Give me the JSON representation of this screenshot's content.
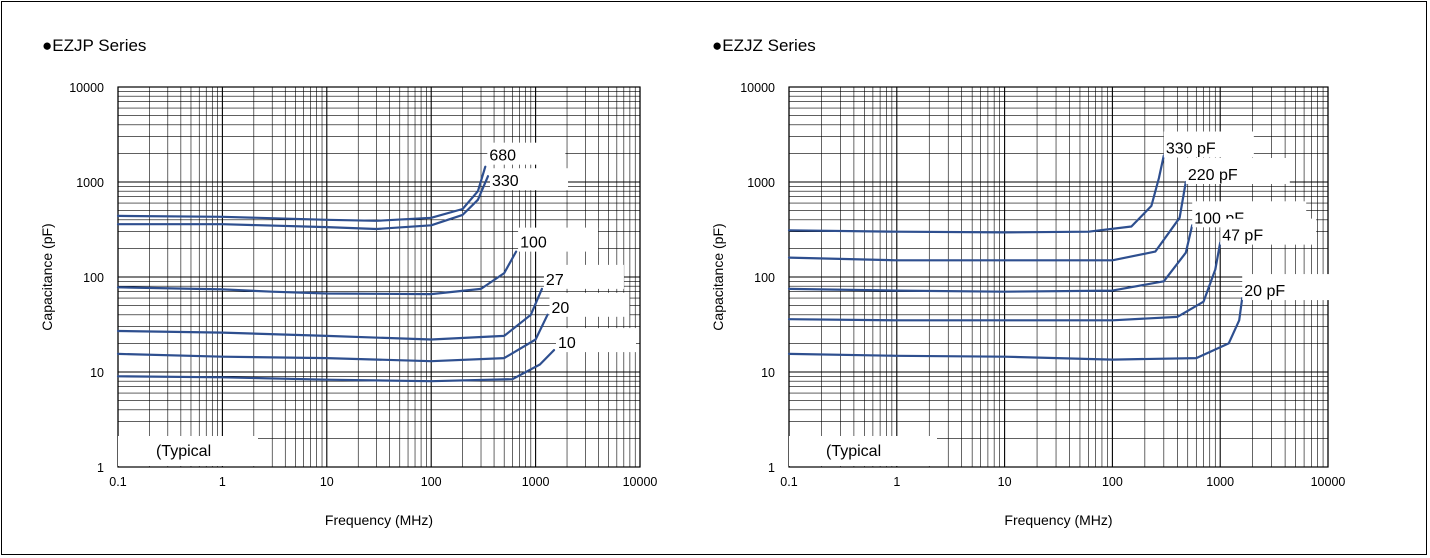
{
  "chart_data": [
    {
      "type": "line",
      "title": "●EZJP Series",
      "xlabel": "Frequency (MHz)",
      "ylabel": "Capacitance (pF)",
      "x_scale": "log",
      "y_scale": "log",
      "xlim": [
        0.1,
        10000
      ],
      "ylim": [
        1,
        10000
      ],
      "x_ticks": [
        "0.1",
        "1",
        "10",
        "100",
        "1000",
        "10000"
      ],
      "y_ticks": [
        "1",
        "10",
        "100",
        "1000",
        "10000"
      ],
      "grid": true,
      "note": "(Typical",
      "line_color": "#2e4f8f",
      "series": [
        {
          "name": "680",
          "label": "680",
          "x": [
            0.1,
            1,
            10,
            30,
            100,
            200,
            280,
            330
          ],
          "y": [
            440,
            430,
            400,
            390,
            420,
            520,
            800,
            1450
          ]
        },
        {
          "name": "330",
          "label": "330",
          "x": [
            0.1,
            1,
            10,
            30,
            100,
            200,
            280,
            350
          ],
          "y": [
            360,
            360,
            335,
            320,
            350,
            450,
            650,
            1150
          ]
        },
        {
          "name": "100",
          "label": "100",
          "x": [
            0.1,
            1,
            3,
            10,
            100,
            300,
            500,
            650
          ],
          "y": [
            78,
            74,
            70,
            67,
            66,
            75,
            110,
            185
          ]
        },
        {
          "name": "27",
          "label": "27",
          "x": [
            0.1,
            1,
            10,
            100,
            500,
            900,
            1150
          ],
          "y": [
            27,
            26,
            24,
            22,
            24,
            40,
            75
          ]
        },
        {
          "name": "20",
          "label": "20",
          "x": [
            0.1,
            1,
            10,
            100,
            500,
            1000,
            1300
          ],
          "y": [
            15.5,
            14.5,
            14,
            13,
            14,
            22,
            40
          ]
        },
        {
          "name": "10",
          "label": "10",
          "x": [
            0.1,
            1,
            10,
            100,
            600,
            1100,
            1500
          ],
          "y": [
            9,
            8.8,
            8.3,
            8,
            8.4,
            12,
            17
          ]
        }
      ]
    },
    {
      "type": "line",
      "title": "●EZJZ Series",
      "xlabel": "Frequency (MHz)",
      "ylabel": "Capacitance (pF)",
      "x_scale": "log",
      "y_scale": "log",
      "xlim": [
        0.1,
        10000
      ],
      "ylim": [
        1,
        10000
      ],
      "x_ticks": [
        "0.1",
        "1",
        "10",
        "100",
        "1000",
        "10000"
      ],
      "y_ticks": [
        "1",
        "10",
        "100",
        "1000",
        "10000"
      ],
      "grid": true,
      "note": "(Typical",
      "line_color": "#2e4f8f",
      "series": [
        {
          "name": "330 pF",
          "label": "330 pF",
          "x": [
            0.1,
            1,
            10,
            60,
            150,
            230,
            270,
            300
          ],
          "y": [
            310,
            300,
            295,
            300,
            340,
            560,
            1100,
            1900
          ]
        },
        {
          "name": "220 pF",
          "label": "220 pF",
          "x": [
            0.1,
            1,
            10,
            100,
            250,
            420,
            480
          ],
          "y": [
            160,
            150,
            150,
            150,
            185,
            420,
            1000
          ]
        },
        {
          "name": "100 pF",
          "label": "100 pF",
          "x": [
            0.1,
            1,
            10,
            100,
            300,
            480,
            550
          ],
          "y": [
            75,
            72,
            70,
            72,
            90,
            180,
            350
          ]
        },
        {
          "name": "47 pF",
          "label": "47 pF",
          "x": [
            0.1,
            1,
            10,
            100,
            400,
            700,
            900,
            1000
          ],
          "y": [
            36,
            35,
            35,
            35,
            38,
            55,
            120,
            230
          ]
        },
        {
          "name": "20 pF",
          "label": "20 pF",
          "x": [
            0.1,
            1,
            10,
            100,
            600,
            1200,
            1500,
            1600
          ],
          "y": [
            15.5,
            14.8,
            14.5,
            13.5,
            14,
            20,
            35,
            60
          ]
        }
      ]
    }
  ]
}
